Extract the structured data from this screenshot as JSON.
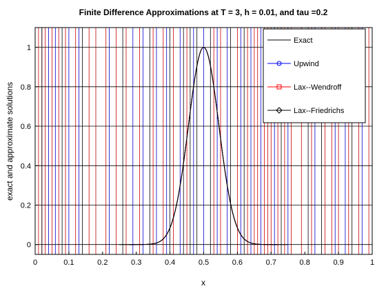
{
  "chart_data": {
    "type": "line",
    "title": "Finite Difference Approximations at T = 3, h = 0.01, and tau =0.2",
    "xlabel": "x",
    "ylabel": "exact and approximate solutions",
    "xlim": [
      0,
      1
    ],
    "ylim": [
      -0.05,
      1.1
    ],
    "x_ticks": [
      "0",
      "0.1",
      "0.2",
      "0.3",
      "0.4",
      "0.5",
      "0.6",
      "0.7",
      "0.8",
      "0.9",
      "1"
    ],
    "y_ticks": [
      "0",
      "0.2",
      "0.4",
      "0.6",
      "0.8",
      "1"
    ],
    "grid": true,
    "legend_position": "top-right",
    "series": [
      {
        "name": "Exact",
        "color": "#000000",
        "marker": "none",
        "x_range": [
          0.25,
          0.75
        ],
        "peak_x": 0.5,
        "peak_y": 1.0
      },
      {
        "name": "Upwind",
        "color": "#0000ff",
        "marker": "circle",
        "x_range": [
          0.28,
          0.72
        ],
        "peak_x": 0.5,
        "peak_y": 1.0
      },
      {
        "name": "Lax--Wendroff",
        "color": "#ff0000",
        "marker": "square",
        "x_range": [
          0.28,
          0.72
        ],
        "peak_x": 0.5,
        "peak_y": 1.0
      },
      {
        "name": "Lax--Friedrichs",
        "color": "#000000",
        "marker": "diamond",
        "x_range": [
          0.28,
          0.72
        ],
        "peak_x": 0.5,
        "peak_y": 1.0
      }
    ],
    "vertical_lines": {
      "red": [
        0.01,
        0.02,
        0.03,
        0.05,
        0.07,
        0.09,
        0.12,
        0.16,
        0.18,
        0.21,
        0.24,
        0.27,
        0.31,
        0.35,
        0.38,
        0.41,
        0.45,
        0.53,
        0.55,
        0.6,
        0.63,
        0.65,
        0.66,
        0.68,
        0.69,
        0.7,
        0.72,
        0.74,
        0.76,
        0.79,
        0.82,
        0.86,
        0.88,
        0.9,
        0.93,
        0.96,
        0.99
      ],
      "blue": [
        0.04,
        0.06,
        0.1,
        0.13,
        0.22,
        0.29,
        0.32,
        0.36,
        0.39,
        0.43,
        0.47,
        0.5,
        0.54,
        0.57,
        0.61,
        0.64,
        0.67,
        0.71,
        0.75,
        0.83,
        0.89,
        0.92,
        0.97
      ],
      "black": [
        0.02,
        0.08,
        0.14,
        0.26,
        0.34,
        0.4,
        0.44,
        0.46,
        0.48,
        0.52,
        0.58,
        0.62,
        0.73,
        0.81,
        0.85,
        0.94
      ]
    }
  }
}
